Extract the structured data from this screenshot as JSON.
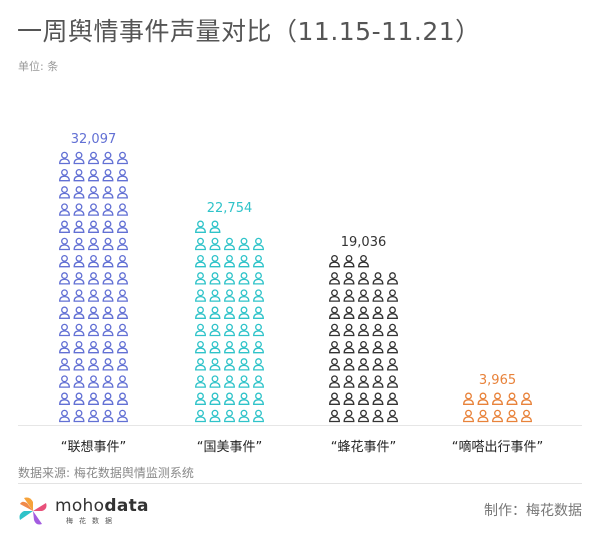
{
  "title": "一周舆情事件声量对比（11.15-11.21）",
  "unit_label": "单位: 条",
  "chart_data": {
    "type": "pictogram-bar",
    "title": "一周舆情事件声量对比（11.15-11.21）",
    "unit": "单位: 条",
    "categories": [
      "“联想事件”",
      "“国美事件”",
      "“蜂花事件”",
      "“嘀嗒出行事件”"
    ],
    "values": [
      32097,
      22754,
      19036,
      3965
    ],
    "value_labels": [
      "32,097",
      "22,754",
      "19,036",
      "3,965"
    ],
    "colors": [
      "#6270d4",
      "#2fc3c9",
      "#333333",
      "#e8823a"
    ],
    "icon": "person-icon",
    "icons_per_row": 5
  },
  "source": "数据来源: 梅花数据舆情监测系统",
  "logo": {
    "text_light": "moho",
    "text_bold": "data",
    "subtitle": "梅花数据"
  },
  "credit": "制作：梅花数据"
}
